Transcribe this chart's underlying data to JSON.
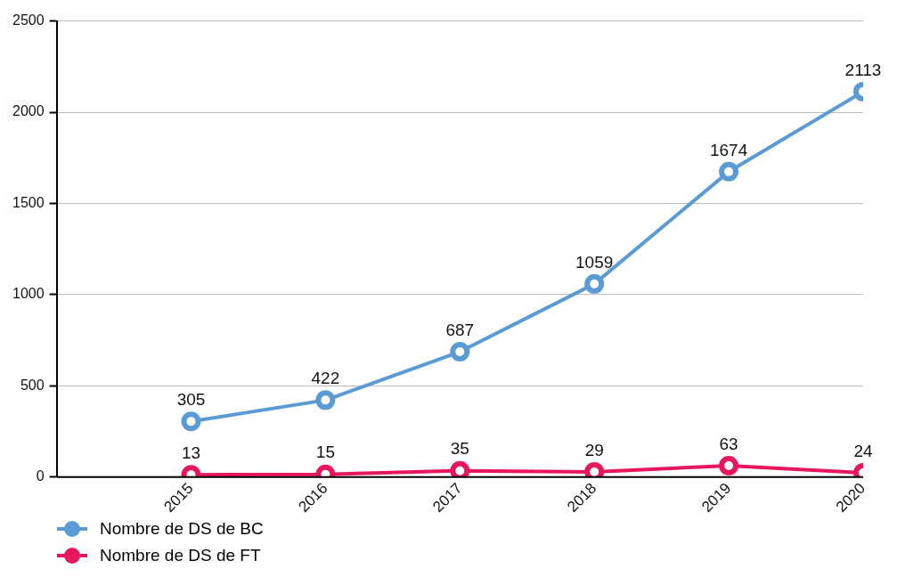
{
  "chart_data": {
    "type": "line",
    "categories": [
      "2015",
      "2016",
      "2017",
      "2018",
      "2019",
      "2020"
    ],
    "series": [
      {
        "name": "Nombre de DS de BC",
        "color": "#5b9bd5",
        "values": [
          305,
          422,
          687,
          1059,
          1674,
          2113
        ]
      },
      {
        "name": "Nombre de DS de FT",
        "color": "#e8175d",
        "values": [
          13,
          15,
          35,
          29,
          63,
          24
        ]
      }
    ],
    "ylim": [
      0,
      2500
    ],
    "yticks": [
      0,
      500,
      1000,
      1500,
      2000,
      2500
    ],
    "grid": "y",
    "legend": "bottom left",
    "marker": "circle",
    "line_style": "solid",
    "data_labels": true
  }
}
